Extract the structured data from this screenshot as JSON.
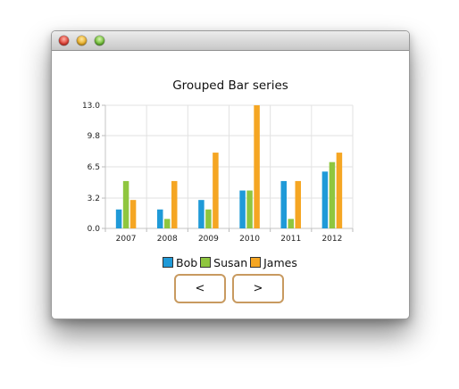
{
  "window": {
    "traffic_lights": [
      "close",
      "minimize",
      "zoom"
    ]
  },
  "chart_data": {
    "type": "bar",
    "title": "Grouped Bar series",
    "categories": [
      "2007",
      "2008",
      "2009",
      "2010",
      "2011",
      "2012"
    ],
    "series": [
      {
        "name": "Bob",
        "color": "#1f9ad8",
        "values": [
          2,
          2,
          3,
          4,
          5,
          6
        ]
      },
      {
        "name": "Susan",
        "color": "#8fc63f",
        "values": [
          5,
          1,
          2,
          4,
          1,
          7
        ]
      },
      {
        "name": "James",
        "color": "#f5a623",
        "values": [
          3,
          5,
          8,
          13,
          5,
          8
        ]
      }
    ],
    "yticks": [
      "0.0",
      "3.2",
      "6.5",
      "9.8",
      "13.0"
    ],
    "ylim": [
      0,
      13
    ],
    "xlabel": "",
    "ylabel": "",
    "grid": true,
    "legend_position": "bottom"
  },
  "navigation": {
    "prev_label": "<",
    "next_label": ">"
  }
}
